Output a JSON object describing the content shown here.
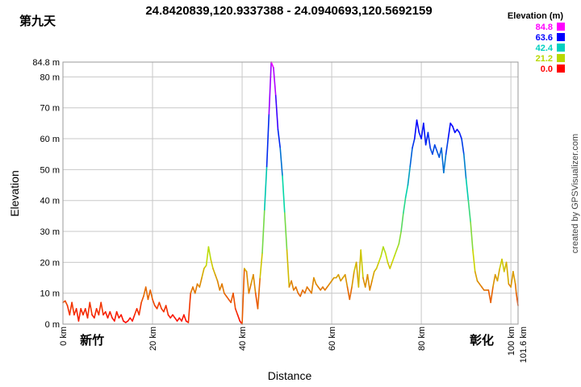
{
  "header": {
    "day_label": "第九天",
    "route_title": "24.8420839,120.9337388 - 24.0940693,120.5692159"
  },
  "credit": "created by GPSVisualizer.com",
  "colors": {
    "grid": "#c8c8c8",
    "frame": "#9a9a9a",
    "background": "#ffffff"
  },
  "chart_data": {
    "type": "line",
    "title": "24.8420839,120.9337388 - 24.0940693,120.5692159",
    "xlabel": "Distance",
    "ylabel": "Elevation",
    "x_unit": "km",
    "y_unit": "m",
    "xlim": [
      0,
      101.6
    ],
    "ylim": [
      0,
      84.8
    ],
    "grid": true,
    "color_mode": "elevation-gradient",
    "x_ticks": [
      {
        "value": 0,
        "label": "0 km"
      },
      {
        "value": 20,
        "label": "20 km"
      },
      {
        "value": 40,
        "label": "40 km"
      },
      {
        "value": 60,
        "label": "60 km"
      },
      {
        "value": 80,
        "label": "80 km"
      },
      {
        "value": 100,
        "label": "100 km"
      },
      {
        "value": 101.6,
        "label": "101.6 km"
      }
    ],
    "y_ticks": [
      {
        "value": 0,
        "label": "0 m"
      },
      {
        "value": 10,
        "label": "10 m"
      },
      {
        "value": 20,
        "label": "20 m"
      },
      {
        "value": 30,
        "label": "30 m"
      },
      {
        "value": 40,
        "label": "40 m"
      },
      {
        "value": 50,
        "label": "50 m"
      },
      {
        "value": 60,
        "label": "60 m"
      },
      {
        "value": 70,
        "label": "70 m"
      },
      {
        "value": 80,
        "label": "80 m"
      },
      {
        "value": 84.8,
        "label": "84.8 m"
      }
    ],
    "legend": {
      "title": "Elevation (m)",
      "position": "top-right",
      "entries": [
        {
          "label": "84.8",
          "color": "#ff00ff"
        },
        {
          "label": "63.6",
          "color": "#0000ff"
        },
        {
          "label": "42.4",
          "color": "#00d0c0"
        },
        {
          "label": "21.2",
          "color": "#b8d800"
        },
        {
          "label": "0.0",
          "color": "#ff0000"
        }
      ]
    },
    "annotations": [
      {
        "text": "新竹",
        "x": 6.5
      },
      {
        "text": "彰化",
        "x": 93.5
      }
    ],
    "series": [
      {
        "points": [
          [
            0,
            7
          ],
          [
            0.5,
            7.5
          ],
          [
            1,
            6
          ],
          [
            1.5,
            3
          ],
          [
            2,
            7
          ],
          [
            2.5,
            3
          ],
          [
            3,
            5
          ],
          [
            3.5,
            1
          ],
          [
            4,
            5
          ],
          [
            4.5,
            3
          ],
          [
            5,
            5
          ],
          [
            5.5,
            2
          ],
          [
            6,
            7
          ],
          [
            6.5,
            3
          ],
          [
            7,
            2
          ],
          [
            7.5,
            5
          ],
          [
            8,
            3
          ],
          [
            8.5,
            7
          ],
          [
            9,
            3
          ],
          [
            9.5,
            4
          ],
          [
            10,
            2
          ],
          [
            10.5,
            4
          ],
          [
            11,
            2
          ],
          [
            11.5,
            1
          ],
          [
            12,
            4
          ],
          [
            12.5,
            2
          ],
          [
            13,
            3
          ],
          [
            13.5,
            1
          ],
          [
            14,
            0.5
          ],
          [
            14.5,
            1
          ],
          [
            15,
            2
          ],
          [
            15.5,
            1
          ],
          [
            16,
            3
          ],
          [
            16.5,
            5
          ],
          [
            17,
            3
          ],
          [
            17.5,
            7
          ],
          [
            18,
            9
          ],
          [
            18.5,
            12
          ],
          [
            19,
            8
          ],
          [
            19.5,
            11
          ],
          [
            20,
            8
          ],
          [
            20.5,
            6
          ],
          [
            21,
            5
          ],
          [
            21.5,
            7
          ],
          [
            22,
            5
          ],
          [
            22.5,
            4
          ],
          [
            23,
            6
          ],
          [
            23.5,
            3
          ],
          [
            24,
            2
          ],
          [
            24.5,
            3
          ],
          [
            25,
            2
          ],
          [
            25.5,
            1
          ],
          [
            26,
            2
          ],
          [
            26.5,
            1
          ],
          [
            27,
            3
          ],
          [
            27.5,
            1
          ],
          [
            28,
            0.5
          ],
          [
            28.5,
            10
          ],
          [
            29,
            12
          ],
          [
            29.5,
            10
          ],
          [
            30,
            13
          ],
          [
            30.5,
            12
          ],
          [
            31,
            15
          ],
          [
            31.5,
            18
          ],
          [
            32,
            19
          ],
          [
            32.5,
            25
          ],
          [
            33,
            21
          ],
          [
            33.5,
            18
          ],
          [
            34,
            16
          ],
          [
            34.5,
            14
          ],
          [
            35,
            11
          ],
          [
            35.5,
            13
          ],
          [
            36,
            10
          ],
          [
            36.5,
            9
          ],
          [
            37,
            8
          ],
          [
            37.5,
            7
          ],
          [
            38,
            10
          ],
          [
            38.5,
            5
          ],
          [
            39,
            3
          ],
          [
            39.5,
            1
          ],
          [
            40,
            0
          ],
          [
            40.5,
            18
          ],
          [
            41,
            17
          ],
          [
            41.5,
            10
          ],
          [
            42,
            13
          ],
          [
            42.5,
            16
          ],
          [
            43,
            10
          ],
          [
            43.5,
            5
          ],
          [
            44,
            15
          ],
          [
            44.5,
            23
          ],
          [
            45,
            37
          ],
          [
            45.5,
            51
          ],
          [
            46,
            68
          ],
          [
            46.5,
            84.8
          ],
          [
            47,
            83
          ],
          [
            47.5,
            74
          ],
          [
            48,
            63
          ],
          [
            48.5,
            57
          ],
          [
            49,
            48
          ],
          [
            49.5,
            36
          ],
          [
            50,
            24
          ],
          [
            50.5,
            12
          ],
          [
            51,
            14
          ],
          [
            51.5,
            11
          ],
          [
            52,
            12
          ],
          [
            52.5,
            10
          ],
          [
            53,
            9
          ],
          [
            53.5,
            11
          ],
          [
            54,
            10
          ],
          [
            54.5,
            12
          ],
          [
            55,
            11
          ],
          [
            55.5,
            10
          ],
          [
            56,
            15
          ],
          [
            56.5,
            13
          ],
          [
            57,
            12
          ],
          [
            57.5,
            11
          ],
          [
            58,
            12
          ],
          [
            58.5,
            11
          ],
          [
            59,
            12
          ],
          [
            59.5,
            13
          ],
          [
            60,
            14
          ],
          [
            60.5,
            15
          ],
          [
            61,
            15
          ],
          [
            61.5,
            16
          ],
          [
            62,
            14
          ],
          [
            62.5,
            15
          ],
          [
            63,
            16
          ],
          [
            63.5,
            12
          ],
          [
            64,
            8
          ],
          [
            64.5,
            12
          ],
          [
            65,
            17
          ],
          [
            65.5,
            20
          ],
          [
            66,
            12
          ],
          [
            66.5,
            24
          ],
          [
            67,
            15
          ],
          [
            67.5,
            12
          ],
          [
            68,
            16
          ],
          [
            68.5,
            11
          ],
          [
            69,
            14
          ],
          [
            69.5,
            17
          ],
          [
            70,
            18
          ],
          [
            70.5,
            20
          ],
          [
            71,
            22
          ],
          [
            71.5,
            25
          ],
          [
            72,
            23
          ],
          [
            72.5,
            20
          ],
          [
            73,
            18
          ],
          [
            73.5,
            20
          ],
          [
            74,
            22
          ],
          [
            74.5,
            24
          ],
          [
            75,
            26
          ],
          [
            75.5,
            30
          ],
          [
            76,
            36
          ],
          [
            76.5,
            41
          ],
          [
            77,
            45
          ],
          [
            77.5,
            51
          ],
          [
            78,
            57
          ],
          [
            78.5,
            60
          ],
          [
            79,
            66
          ],
          [
            79.5,
            62
          ],
          [
            80,
            60
          ],
          [
            80.5,
            65
          ],
          [
            81,
            58
          ],
          [
            81.5,
            62
          ],
          [
            82,
            57
          ],
          [
            82.5,
            55
          ],
          [
            83,
            58
          ],
          [
            83.5,
            56
          ],
          [
            84,
            54
          ],
          [
            84.5,
            57
          ],
          [
            85,
            49
          ],
          [
            85.5,
            55
          ],
          [
            86,
            60
          ],
          [
            86.5,
            65
          ],
          [
            87,
            64
          ],
          [
            87.5,
            62
          ],
          [
            88,
            63
          ],
          [
            88.5,
            62
          ],
          [
            89,
            60
          ],
          [
            89.5,
            55
          ],
          [
            90,
            47
          ],
          [
            90.5,
            40
          ],
          [
            91,
            33
          ],
          [
            91.5,
            24
          ],
          [
            92,
            17
          ],
          [
            92.5,
            14
          ],
          [
            93,
            13
          ],
          [
            93.5,
            12
          ],
          [
            94,
            11
          ],
          [
            94.5,
            11
          ],
          [
            95,
            11
          ],
          [
            95.5,
            7
          ],
          [
            96,
            12
          ],
          [
            96.5,
            16
          ],
          [
            97,
            14
          ],
          [
            97.5,
            18
          ],
          [
            98,
            21
          ],
          [
            98.5,
            17
          ],
          [
            99,
            20
          ],
          [
            99.5,
            13
          ],
          [
            100,
            12
          ],
          [
            100.5,
            17
          ],
          [
            101,
            13
          ],
          [
            101.2,
            10
          ],
          [
            101.4,
            8
          ],
          [
            101.6,
            6
          ]
        ]
      }
    ]
  }
}
